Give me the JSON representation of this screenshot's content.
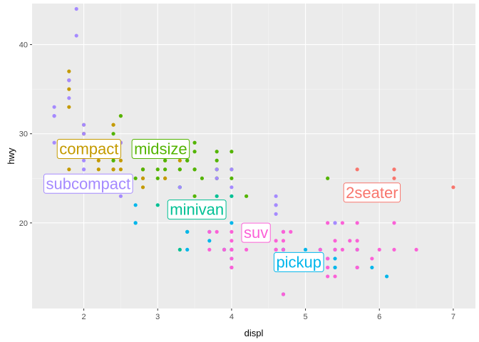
{
  "chart_data": {
    "type": "scatter",
    "xlabel": "displ",
    "ylabel": "hwy",
    "xlim": [
      1.3,
      7.3
    ],
    "ylim": [
      10.4,
      44.6
    ],
    "x_ticks": [
      2,
      3,
      4,
      5,
      6,
      7
    ],
    "y_ticks": [
      20,
      30,
      40
    ],
    "grid": true,
    "legend": "none",
    "colors": {
      "2seater": "#F8766D",
      "compact": "#C49A00",
      "midsize": "#53B400",
      "minivan": "#00C094",
      "pickup": "#00B6EB",
      "subcompact": "#A58AFF",
      "suv": "#FB61D7"
    },
    "series": [
      {
        "name": "2seater",
        "points": [
          [
            5.7,
            26
          ],
          [
            5.7,
            23
          ],
          [
            6.2,
            26
          ],
          [
            6.2,
            25
          ],
          [
            7.0,
            24
          ]
        ]
      },
      {
        "name": "compact",
        "points": [
          [
            1.8,
            29
          ],
          [
            1.8,
            29
          ],
          [
            2.0,
            31
          ],
          [
            2.0,
            30
          ],
          [
            2.8,
            26
          ],
          [
            2.8,
            26
          ],
          [
            3.1,
            27
          ],
          [
            1.8,
            26
          ],
          [
            1.8,
            25
          ],
          [
            2.0,
            28
          ],
          [
            2.0,
            28
          ],
          [
            2.8,
            25
          ],
          [
            2.8,
            25
          ],
          [
            3.1,
            25
          ],
          [
            3.1,
            25
          ],
          [
            1.8,
            36
          ],
          [
            1.8,
            37
          ],
          [
            1.8,
            35
          ],
          [
            1.8,
            33
          ],
          [
            2.0,
            30
          ],
          [
            2.0,
            29
          ],
          [
            2.0,
            28
          ],
          [
            2.2,
            29
          ],
          [
            2.2,
            27
          ],
          [
            2.4,
            31
          ],
          [
            2.4,
            31
          ],
          [
            2.4,
            26
          ],
          [
            2.5,
            29
          ],
          [
            2.5,
            32
          ],
          [
            2.5,
            27
          ],
          [
            2.5,
            26
          ],
          [
            2.8,
            24
          ],
          [
            2.8,
            29
          ],
          [
            3.0,
            28
          ],
          [
            3.3,
            27
          ],
          [
            3.3,
            24
          ],
          [
            2.2,
            26
          ],
          [
            2.4,
            26
          ],
          [
            1.9,
            24
          ]
        ]
      },
      {
        "name": "midsize",
        "points": [
          [
            2.8,
            26
          ],
          [
            3.1,
            26
          ],
          [
            4.2,
            23
          ],
          [
            2.4,
            30
          ],
          [
            3.5,
            26
          ],
          [
            3.6,
            25
          ],
          [
            2.4,
            27
          ],
          [
            2.4,
            27
          ],
          [
            3.0,
            28
          ],
          [
            3.0,
            29
          ],
          [
            3.5,
            29
          ],
          [
            3.3,
            26
          ],
          [
            3.8,
            26
          ],
          [
            3.8,
            27
          ],
          [
            3.0,
            26
          ],
          [
            3.5,
            28
          ],
          [
            4.0,
            25
          ],
          [
            3.0,
            25
          ],
          [
            3.1,
            27
          ],
          [
            3.8,
            25
          ],
          [
            3.8,
            26
          ],
          [
            5.3,
            25
          ],
          [
            2.5,
            32
          ],
          [
            3.3,
            26
          ],
          [
            2.7,
            25
          ],
          [
            3.4,
            27
          ],
          [
            3.4,
            27
          ],
          [
            4.0,
            26
          ],
          [
            4.0,
            28
          ],
          [
            3.5,
            26
          ],
          [
            3.5,
            23
          ],
          [
            3.8,
            28
          ],
          [
            3.8,
            25
          ]
        ]
      },
      {
        "name": "minivan",
        "points": [
          [
            2.4,
            24
          ],
          [
            3.0,
            22
          ],
          [
            3.3,
            22
          ],
          [
            3.3,
            24
          ],
          [
            3.3,
            24
          ],
          [
            3.3,
            17
          ],
          [
            3.8,
            22
          ],
          [
            3.8,
            21
          ],
          [
            3.8,
            23
          ],
          [
            4.0,
            23
          ],
          [
            3.4,
            19
          ]
        ]
      },
      {
        "name": "pickup",
        "points": [
          [
            3.7,
            19
          ],
          [
            3.7,
            18
          ],
          [
            3.9,
            17
          ],
          [
            3.9,
            17
          ],
          [
            4.7,
            19
          ],
          [
            4.7,
            17
          ],
          [
            4.7,
            17
          ],
          [
            4.7,
            17
          ],
          [
            5.2,
            17
          ],
          [
            5.2,
            15
          ],
          [
            5.7,
            17
          ],
          [
            5.9,
            15
          ],
          [
            4.7,
            16
          ],
          [
            4.7,
            12
          ],
          [
            5.2,
            16
          ],
          [
            5.3,
            16
          ],
          [
            4.7,
            15
          ],
          [
            5.4,
            16
          ],
          [
            5.4,
            15
          ],
          [
            4.0,
            17
          ],
          [
            4.0,
            17
          ],
          [
            4.0,
            15
          ],
          [
            4.0,
            16
          ],
          [
            4.6,
            17
          ],
          [
            4.6,
            16
          ],
          [
            5.4,
            17
          ],
          [
            5.4,
            15
          ],
          [
            2.7,
            20
          ],
          [
            2.7,
            22
          ],
          [
            2.7,
            20
          ],
          [
            3.4,
            19
          ],
          [
            3.4,
            17
          ],
          [
            4.0,
            20
          ],
          [
            4.7,
            17
          ],
          [
            4.7,
            16
          ],
          [
            5.7,
            15
          ],
          [
            5.0,
            17
          ],
          [
            6.1,
            14
          ]
        ]
      },
      {
        "name": "subcompact",
        "points": [
          [
            3.8,
            26
          ],
          [
            3.8,
            25
          ],
          [
            4.0,
            26
          ],
          [
            4.0,
            24
          ],
          [
            4.6,
            21
          ],
          [
            4.6,
            22
          ],
          [
            5.4,
            20
          ],
          [
            5.4,
            20
          ],
          [
            4.6,
            23
          ],
          [
            4.6,
            22
          ],
          [
            1.6,
            33
          ],
          [
            1.6,
            32
          ],
          [
            1.6,
            32
          ],
          [
            1.6,
            29
          ],
          [
            1.6,
            32
          ],
          [
            1.8,
            34
          ],
          [
            1.8,
            36
          ],
          [
            1.8,
            36
          ],
          [
            2.0,
            29
          ],
          [
            2.0,
            26
          ],
          [
            2.0,
            27
          ],
          [
            2.0,
            30
          ],
          [
            2.0,
            31
          ],
          [
            2.4,
            24
          ],
          [
            2.4,
            24
          ],
          [
            1.9,
            44
          ],
          [
            1.9,
            41
          ],
          [
            2.0,
            29
          ],
          [
            2.0,
            26
          ],
          [
            2.0,
            28
          ],
          [
            2.0,
            29
          ],
          [
            2.5,
            29
          ],
          [
            2.5,
            29
          ],
          [
            2.5,
            23
          ],
          [
            3.3,
            24
          ]
        ]
      },
      {
        "name": "suv",
        "points": [
          [
            5.7,
            20
          ],
          [
            5.7,
            15
          ],
          [
            6.2,
            20
          ],
          [
            6.2,
            17
          ],
          [
            6.5,
            17
          ],
          [
            5.3,
            20
          ],
          [
            5.3,
            15
          ],
          [
            5.7,
            17
          ],
          [
            6.0,
            17
          ],
          [
            5.7,
            18
          ],
          [
            5.3,
            16
          ],
          [
            4.2,
            17
          ],
          [
            4.7,
            19
          ],
          [
            4.7,
            19
          ],
          [
            4.7,
            12
          ],
          [
            4.7,
            18
          ],
          [
            4.7,
            17
          ],
          [
            5.2,
            17
          ],
          [
            5.9,
            16
          ],
          [
            4.0,
            19
          ],
          [
            4.0,
            17
          ],
          [
            4.0,
            17
          ],
          [
            4.0,
            16
          ],
          [
            3.7,
            19
          ],
          [
            4.0,
            15
          ],
          [
            4.6,
            17
          ],
          [
            5.0,
            15
          ],
          [
            5.4,
            18
          ],
          [
            5.6,
            18
          ],
          [
            3.9,
            17
          ],
          [
            4.6,
            18
          ],
          [
            5.3,
            15
          ],
          [
            5.4,
            14
          ],
          [
            5.7,
            15
          ],
          [
            5.4,
            17
          ],
          [
            4.0,
            18
          ],
          [
            3.7,
            17
          ],
          [
            4.5,
            18
          ],
          [
            5.5,
            17
          ],
          [
            4.6,
            17
          ],
          [
            5.3,
            14
          ],
          [
            4.8,
            19
          ],
          [
            3.8,
            19
          ],
          [
            4.2,
            18
          ],
          [
            4.0,
            15
          ],
          [
            5.5,
            20
          ],
          [
            5.3,
            16
          ],
          [
            2.5,
            24
          ]
        ]
      }
    ],
    "annotations": [
      {
        "text": "2seater",
        "series": "2seater",
        "x": 5.9,
        "y": 23.4
      },
      {
        "text": "compact",
        "series": "compact",
        "x": 2.07,
        "y": 28.3
      },
      {
        "text": "midsize",
        "series": "midsize",
        "x": 3.04,
        "y": 28.3
      },
      {
        "text": "minivan",
        "series": "minivan",
        "x": 3.53,
        "y": 21.5
      },
      {
        "text": "pickup",
        "series": "pickup",
        "x": 4.91,
        "y": 15.6
      },
      {
        "text": "subcompact",
        "series": "subcompact",
        "x": 2.06,
        "y": 24.4
      },
      {
        "text": "suv",
        "series": "suv",
        "x": 4.33,
        "y": 18.9
      }
    ]
  }
}
